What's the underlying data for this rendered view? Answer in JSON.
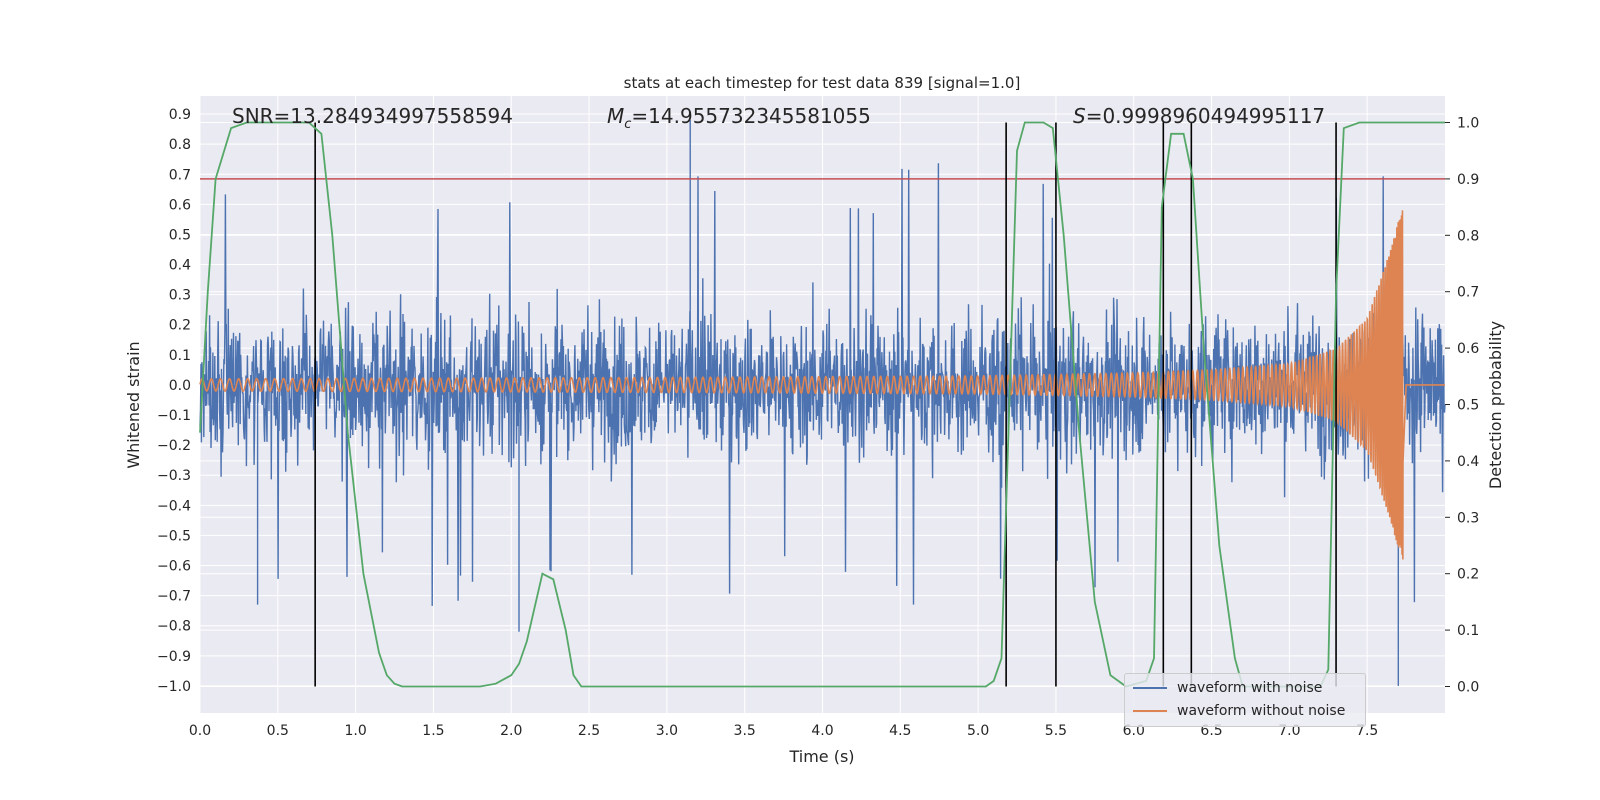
{
  "chart_data": {
    "type": "line",
    "title": "stats at each timestep for test data 839 [signal=1.0]",
    "xlabel": "Time (s)",
    "ylabel": "Whitened strain",
    "y2label": "Detection probability",
    "xlim": [
      0.0,
      8.0
    ],
    "ylim": [
      -1.09,
      0.96
    ],
    "y2lim": [
      -0.047,
      1.047
    ],
    "xticks": [
      "0.0",
      "0.5",
      "1.0",
      "1.5",
      "2.0",
      "2.5",
      "3.0",
      "3.5",
      "4.0",
      "4.5",
      "5.0",
      "5.5",
      "6.0",
      "6.5",
      "7.0",
      "7.5"
    ],
    "yticks": [
      "0.9",
      "0.8",
      "0.7",
      "0.6",
      "0.5",
      "0.4",
      "0.3",
      "0.2",
      "0.1",
      "0.0",
      "-0.1",
      "-0.2",
      "-0.3",
      "-0.4",
      "-0.5",
      "-0.6",
      "-0.7",
      "-0.8",
      "-0.9",
      "-1.0"
    ],
    "y2ticks": [
      "0.0",
      "0.1",
      "0.2",
      "0.3",
      "0.4",
      "0.5",
      "0.6",
      "0.7",
      "0.8",
      "0.9",
      "1.0"
    ],
    "annotations": {
      "snr": "SNR=13.284934997558594",
      "mc_symbol": "M",
      "mc_sub": "c",
      "mc_value": "=14.955732345581055",
      "s_symbol": "S",
      "s_value": "=0.9998960494995117"
    },
    "threshold": 0.9,
    "threshold_color": "#c44e52",
    "detection_markers_s": [
      0.74,
      5.18,
      5.5,
      6.19,
      6.37,
      7.3
    ],
    "series": [
      {
        "name": "waveform with noise",
        "color": "#4c72b0",
        "envelope": "random noise approx. between -0.6 and 0.6 with occasional spikes to 0.88 and -1.0",
        "notable_peaks": [
          [
            3.15,
            0.88
          ],
          [
            7.7,
            -1.0
          ],
          [
            2.05,
            -0.82
          ],
          [
            0.37,
            -0.73
          ]
        ]
      },
      {
        "name": "waveform without noise",
        "color": "#dd8452",
        "description": "chirp with growing amplitude",
        "amplitude_points": [
          [
            0.0,
            0.02
          ],
          [
            3.0,
            0.025
          ],
          [
            5.0,
            0.03
          ],
          [
            6.0,
            0.04
          ],
          [
            6.5,
            0.05
          ],
          [
            7.0,
            0.07
          ],
          [
            7.3,
            0.12
          ],
          [
            7.5,
            0.22
          ],
          [
            7.65,
            0.45
          ],
          [
            7.72,
            0.58
          ]
        ],
        "merger_time_s": 7.73
      },
      {
        "name": "detection probability",
        "color": "#55a868",
        "axis": "right",
        "points": [
          [
            0.0,
            0.45
          ],
          [
            0.05,
            0.7
          ],
          [
            0.1,
            0.9
          ],
          [
            0.2,
            0.99
          ],
          [
            0.3,
            1.0
          ],
          [
            0.7,
            1.0
          ],
          [
            0.78,
            0.98
          ],
          [
            0.85,
            0.8
          ],
          [
            0.95,
            0.45
          ],
          [
            1.05,
            0.2
          ],
          [
            1.15,
            0.06
          ],
          [
            1.2,
            0.02
          ],
          [
            1.25,
            0.005
          ],
          [
            1.3,
            0.0
          ],
          [
            1.8,
            0.0
          ],
          [
            1.9,
            0.005
          ],
          [
            2.0,
            0.02
          ],
          [
            2.05,
            0.04
          ],
          [
            2.1,
            0.08
          ],
          [
            2.15,
            0.14
          ],
          [
            2.2,
            0.2
          ],
          [
            2.27,
            0.19
          ],
          [
            2.35,
            0.1
          ],
          [
            2.4,
            0.02
          ],
          [
            2.45,
            0.0
          ],
          [
            5.05,
            0.0
          ],
          [
            5.1,
            0.01
          ],
          [
            5.15,
            0.05
          ],
          [
            5.2,
            0.5
          ],
          [
            5.25,
            0.95
          ],
          [
            5.3,
            1.0
          ],
          [
            5.42,
            1.0
          ],
          [
            5.48,
            0.99
          ],
          [
            5.55,
            0.8
          ],
          [
            5.65,
            0.45
          ],
          [
            5.75,
            0.15
          ],
          [
            5.85,
            0.02
          ],
          [
            5.95,
            0.0
          ],
          [
            6.08,
            0.01
          ],
          [
            6.13,
            0.05
          ],
          [
            6.18,
            0.85
          ],
          [
            6.24,
            0.98
          ],
          [
            6.32,
            0.98
          ],
          [
            6.38,
            0.9
          ],
          [
            6.45,
            0.6
          ],
          [
            6.55,
            0.25
          ],
          [
            6.65,
            0.05
          ],
          [
            6.7,
            0.0
          ],
          [
            7.2,
            0.0
          ],
          [
            7.25,
            0.03
          ],
          [
            7.3,
            0.7
          ],
          [
            7.35,
            0.99
          ],
          [
            7.45,
            1.0
          ],
          [
            8.0,
            1.0
          ]
        ]
      }
    ],
    "legend_position": "lower right"
  }
}
